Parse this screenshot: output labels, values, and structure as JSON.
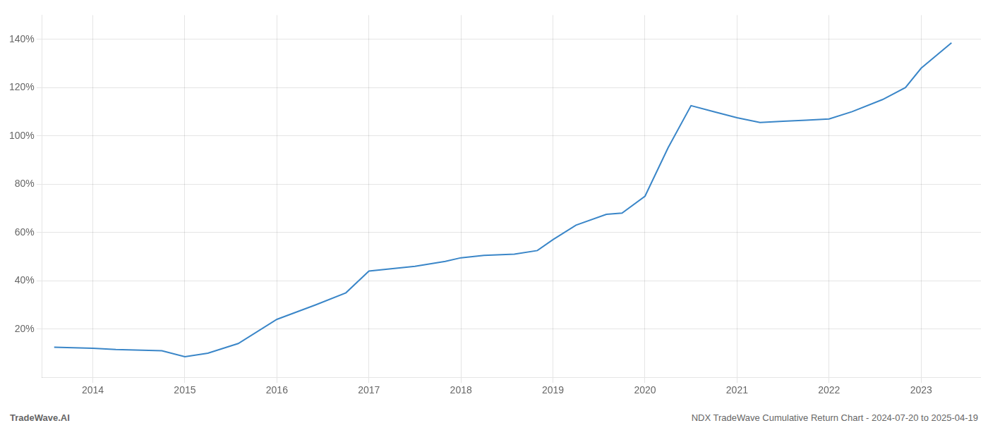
{
  "chart_data": {
    "type": "line",
    "annotations": [
      "TradeWave.AI",
      "NDX TradeWave Cumulative Return Chart - 2024-07-20 to 2025-04-19"
    ],
    "x": [
      2013.58,
      2014.0,
      2014.25,
      2014.75,
      2015.0,
      2015.25,
      2015.58,
      2016.0,
      2016.42,
      2016.75,
      2017.0,
      2017.5,
      2017.83,
      2018.0,
      2018.25,
      2018.58,
      2018.83,
      2019.0,
      2019.25,
      2019.58,
      2019.75,
      2020.0,
      2020.25,
      2020.5,
      2020.75,
      2021.0,
      2021.25,
      2021.5,
      2021.75,
      2022.0,
      2022.25,
      2022.58,
      2022.83,
      2023.0,
      2023.33
    ],
    "values": [
      12.5,
      12.0,
      11.5,
      11.0,
      8.5,
      10.0,
      14.0,
      24.0,
      30.0,
      35.0,
      44.0,
      46.0,
      48.0,
      49.5,
      50.5,
      51.0,
      52.5,
      57.0,
      63.0,
      67.5,
      68.0,
      75.0,
      95.0,
      112.5,
      110.0,
      107.5,
      105.5,
      106.0,
      106.5,
      107.0,
      110.0,
      115.0,
      120.0,
      128.0,
      138.5
    ],
    "color": "#3a86c8",
    "xlim": [
      2013.45,
      2023.65
    ],
    "xticks": [
      2014,
      2015,
      2016,
      2017,
      2018,
      2019,
      2020,
      2021,
      2022,
      2023
    ],
    "ylim": [
      0,
      150
    ],
    "yticks": [
      {
        "value": 20,
        "label": "20%"
      },
      {
        "value": 40,
        "label": "40%"
      },
      {
        "value": 60,
        "label": "60%"
      },
      {
        "value": 80,
        "label": "80%"
      },
      {
        "value": 100,
        "label": "100%"
      },
      {
        "value": 120,
        "label": "120%"
      },
      {
        "value": 140,
        "label": "140%"
      }
    ],
    "grid": true
  }
}
